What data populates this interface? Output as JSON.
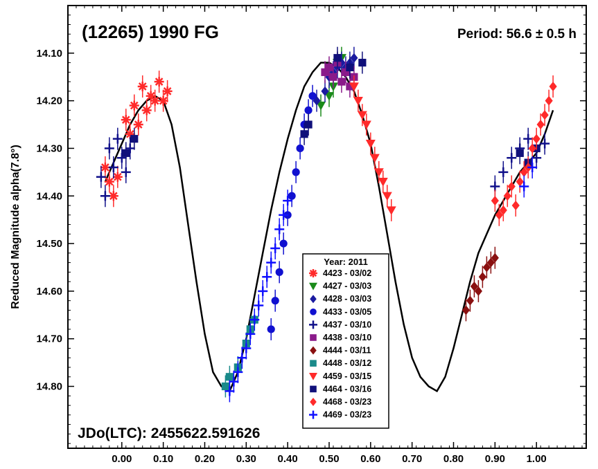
{
  "chart_data": {
    "type": "scatter",
    "title": "(12265) 1990 FG",
    "period_label": "Period: 56.6 ± 0.5 h",
    "epoch_label": "JDo(LTC): 2455622.591626",
    "xlabel": "",
    "ylabel": "Reduced Magnitude alpha(7.8°)",
    "xlim": [
      -0.13,
      1.12
    ],
    "ylim": [
      14.0,
      14.93
    ],
    "y_inverted": true,
    "x_ticks": [
      "0.00",
      "0.10",
      "0.20",
      "0.30",
      "0.40",
      "0.50",
      "0.60",
      "0.70",
      "0.80",
      "0.90",
      "1.00"
    ],
    "y_ticks": [
      "14.10",
      "14.20",
      "14.30",
      "14.40",
      "14.50",
      "14.60",
      "14.70",
      "14.80"
    ],
    "legend": {
      "title": "Year: 2011",
      "position": "bottom-center"
    },
    "fit_curve": {
      "x": [
        -0.04,
        -0.02,
        0.0,
        0.02,
        0.04,
        0.06,
        0.08,
        0.1,
        0.12,
        0.14,
        0.16,
        0.18,
        0.2,
        0.22,
        0.24,
        0.26,
        0.28,
        0.3,
        0.32,
        0.34,
        0.36,
        0.38,
        0.4,
        0.42,
        0.44,
        0.46,
        0.48,
        0.5,
        0.52,
        0.54,
        0.56,
        0.58,
        0.6,
        0.62,
        0.64,
        0.66,
        0.68,
        0.7,
        0.72,
        0.74,
        0.76,
        0.78,
        0.8,
        0.82,
        0.84,
        0.86,
        0.88,
        0.9,
        0.92,
        0.94,
        0.96,
        0.98,
        1.0,
        1.02,
        1.04
      ],
      "y": [
        14.37,
        14.33,
        14.29,
        14.25,
        14.22,
        14.2,
        14.19,
        14.2,
        14.25,
        14.34,
        14.46,
        14.58,
        14.69,
        14.77,
        14.8,
        14.81,
        14.77,
        14.7,
        14.61,
        14.52,
        14.43,
        14.35,
        14.28,
        14.22,
        14.17,
        14.14,
        14.12,
        14.12,
        14.13,
        14.15,
        14.18,
        14.23,
        14.29,
        14.38,
        14.48,
        14.58,
        14.67,
        14.74,
        14.78,
        14.8,
        14.81,
        14.78,
        14.72,
        14.65,
        14.58,
        14.52,
        14.48,
        14.44,
        14.41,
        14.38,
        14.35,
        14.33,
        14.31,
        14.27,
        14.22
      ]
    },
    "series": [
      {
        "name": "4423 - 03/02",
        "color": "#ff2a2a",
        "marker": "star",
        "x": [
          -0.04,
          -0.03,
          -0.02,
          -0.01,
          0.01,
          0.02,
          0.03,
          0.04,
          0.05,
          0.06,
          0.07,
          0.08,
          0.09,
          0.1,
          0.11
        ],
        "y": [
          14.34,
          14.37,
          14.4,
          14.36,
          14.24,
          14.27,
          14.21,
          14.25,
          14.17,
          14.22,
          14.19,
          14.2,
          14.16,
          14.2,
          14.18
        ]
      },
      {
        "name": "4427 - 03/03",
        "color": "#1a8a1a",
        "marker": "triangle-down",
        "x": [
          0.48,
          0.5,
          0.51,
          0.52,
          0.53
        ],
        "y": [
          14.21,
          14.19,
          14.17,
          14.12,
          14.11
        ]
      },
      {
        "name": "4428 - 03/03",
        "color": "#1a1aa0",
        "marker": "diamond",
        "x": [
          0.47,
          0.49,
          0.5,
          0.51,
          0.52,
          0.53,
          0.54,
          0.55,
          0.56
        ],
        "y": [
          14.2,
          14.18,
          14.15,
          14.14,
          14.13,
          14.12,
          14.13,
          14.12,
          14.11
        ]
      },
      {
        "name": "4433 - 03/05",
        "color": "#1010d0",
        "marker": "circle",
        "x": [
          0.36,
          0.37,
          0.38,
          0.39,
          0.4,
          0.41,
          0.42,
          0.43,
          0.44,
          0.45,
          0.46
        ],
        "y": [
          14.68,
          14.62,
          14.56,
          14.5,
          14.44,
          14.4,
          14.35,
          14.3,
          14.25,
          14.22,
          14.19
        ]
      },
      {
        "name": "4437 - 03/10",
        "color": "#10108a",
        "marker": "plus",
        "x": [
          -0.05,
          -0.04,
          -0.03,
          -0.02,
          -0.01,
          0.0,
          0.01,
          0.02,
          0.9,
          0.92,
          0.94,
          0.96,
          0.98,
          1.0,
          1.02
        ],
        "y": [
          14.36,
          14.4,
          14.3,
          14.34,
          14.28,
          14.32,
          14.35,
          14.3,
          14.38,
          14.35,
          14.32,
          14.3,
          14.28,
          14.32,
          14.29
        ]
      },
      {
        "name": "4438 - 03/10",
        "color": "#8a1a8a",
        "marker": "square",
        "x": [
          0.49,
          0.5,
          0.51,
          0.52,
          0.53,
          0.54,
          0.55,
          0.56
        ],
        "y": [
          14.14,
          14.13,
          14.15,
          14.12,
          14.16,
          14.14,
          14.17,
          14.15
        ]
      },
      {
        "name": "4444 - 03/11",
        "color": "#8a1010",
        "marker": "diamond",
        "x": [
          0.83,
          0.84,
          0.85,
          0.86,
          0.87,
          0.88,
          0.89,
          0.9
        ],
        "y": [
          14.64,
          14.62,
          14.59,
          14.6,
          14.57,
          14.55,
          14.54,
          14.53
        ]
      },
      {
        "name": "4448 - 03/12",
        "color": "#1a8a8a",
        "marker": "square",
        "x": [
          0.25,
          0.26,
          0.28,
          0.3,
          0.31,
          0.32
        ],
        "y": [
          14.8,
          14.78,
          14.76,
          14.71,
          14.68,
          14.66
        ]
      },
      {
        "name": "4459 - 03/15",
        "color": "#ff2a2a",
        "marker": "triangle-down",
        "x": [
          0.56,
          0.57,
          0.58,
          0.59,
          0.6,
          0.61,
          0.62,
          0.63,
          0.64,
          0.65
        ],
        "y": [
          14.17,
          14.2,
          14.23,
          14.25,
          14.29,
          14.32,
          14.35,
          14.37,
          14.4,
          14.43
        ]
      },
      {
        "name": "4464 - 03/16",
        "color": "#10107a",
        "marker": "square",
        "x": [
          0.01,
          0.03,
          0.44,
          0.45,
          0.52,
          0.55,
          0.58,
          0.96,
          0.98,
          1.0
        ],
        "y": [
          14.31,
          14.28,
          14.27,
          14.25,
          14.11,
          14.13,
          14.12,
          14.31,
          14.33,
          14.3
        ]
      },
      {
        "name": "4468 - 03/23",
        "color": "#ff2a2a",
        "marker": "diamond",
        "x": [
          0.9,
          0.91,
          0.92,
          0.93,
          0.94,
          0.95,
          0.96,
          0.97,
          0.98,
          0.99,
          1.0,
          1.01,
          1.02,
          1.03,
          1.04
        ],
        "y": [
          14.41,
          14.44,
          14.43,
          14.4,
          14.38,
          14.42,
          14.37,
          14.35,
          14.34,
          14.3,
          14.28,
          14.25,
          14.23,
          14.2,
          14.17
        ]
      },
      {
        "name": "4469 - 03/23",
        "color": "#1010ff",
        "marker": "plus",
        "x": [
          0.26,
          0.27,
          0.28,
          0.29,
          0.3,
          0.31,
          0.32,
          0.33,
          0.34,
          0.35,
          0.36,
          0.37,
          0.38,
          0.39,
          0.4,
          0.97,
          0.99
        ],
        "y": [
          14.81,
          14.79,
          14.77,
          14.74,
          14.72,
          14.69,
          14.66,
          14.63,
          14.6,
          14.57,
          14.54,
          14.51,
          14.47,
          14.44,
          14.41,
          14.38,
          14.34
        ]
      }
    ]
  }
}
